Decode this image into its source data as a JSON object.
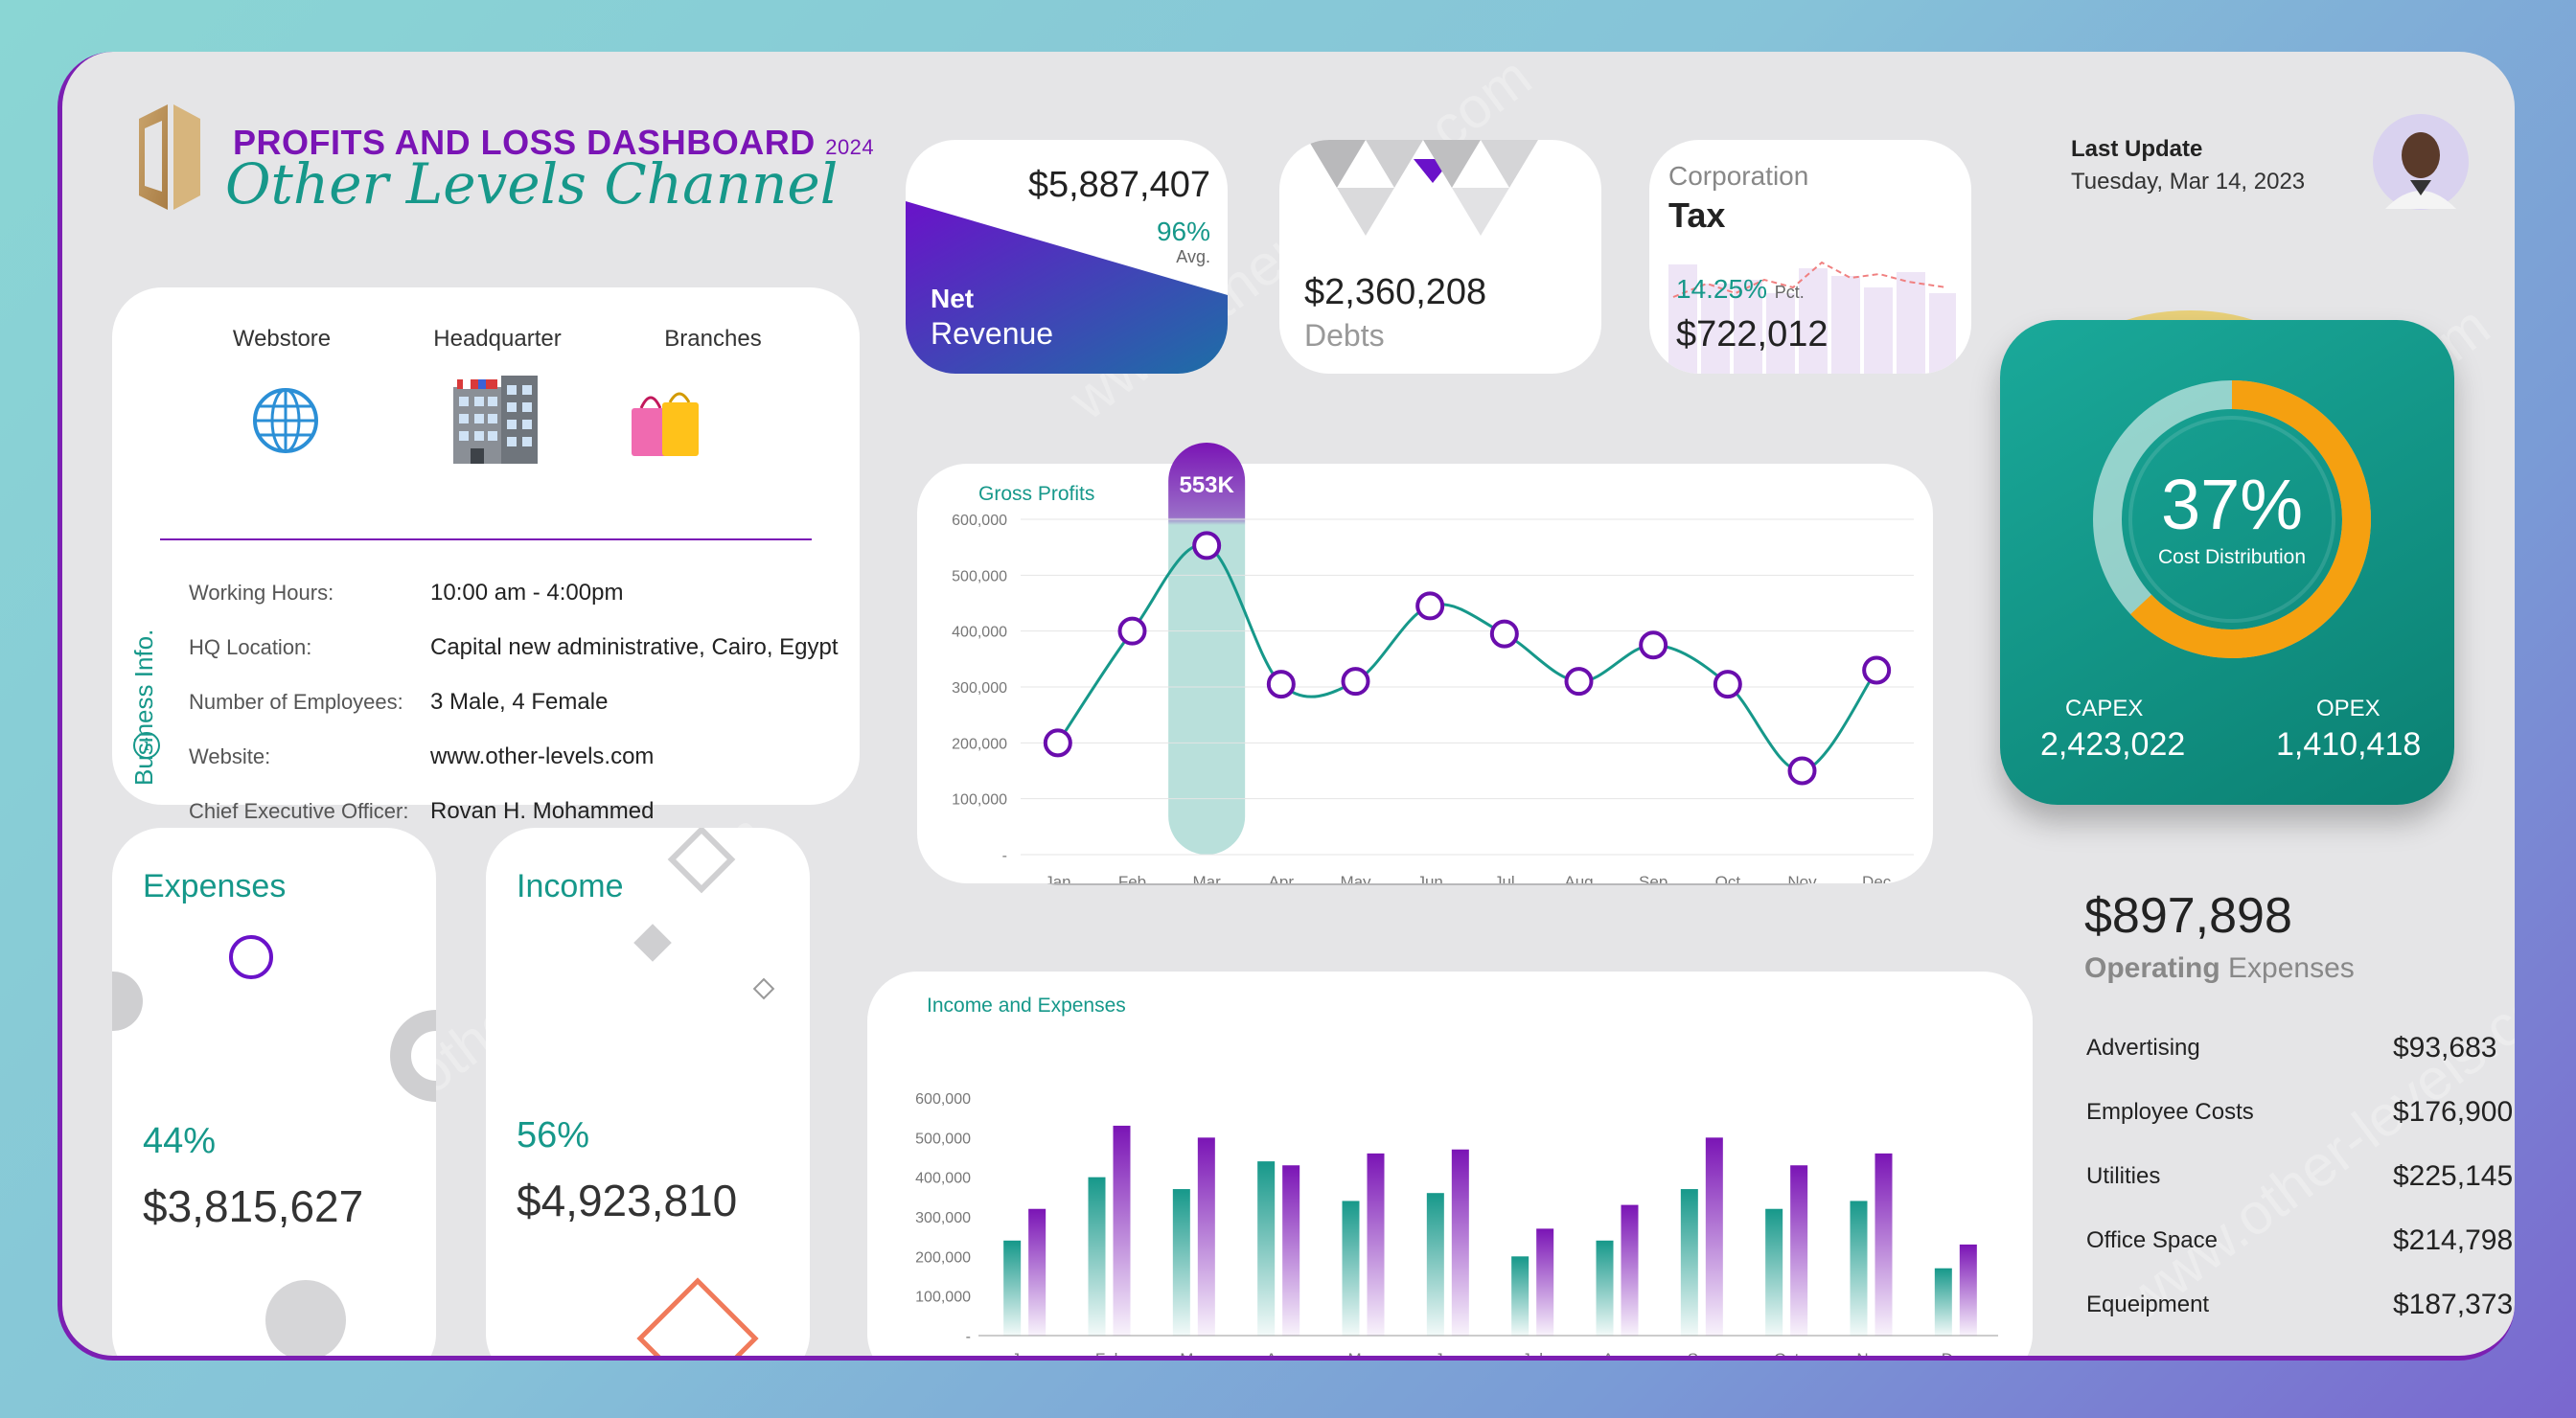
{
  "header": {
    "title": "PROFITS AND LOSS DASHBOARD",
    "year": "2024",
    "subtitle": "Other Levels Channel"
  },
  "last_update": {
    "label": "Last Update",
    "date": "Tuesday, Mar 14, 2023"
  },
  "business": {
    "section_label": "Business Info.",
    "info_icon": "i",
    "icons": [
      {
        "label": "Webstore",
        "icon": "globe-icon"
      },
      {
        "label": "Headquarter",
        "icon": "building-icon"
      },
      {
        "label": "Branches",
        "icon": "shopping-bags-icon"
      }
    ],
    "rows": [
      {
        "label": "Working Hours:",
        "value": "10:00 am - 4:00pm"
      },
      {
        "label": "HQ Location:",
        "value": "Capital new administrative, Cairo, Egypt"
      },
      {
        "label": "Number of Employees:",
        "value": "3 Male, 4 Female"
      },
      {
        "label": "Website:",
        "value": "www.other-levels.com"
      },
      {
        "label": "Chief Executive Officer:",
        "value": "Rovan H. Mohammed"
      }
    ]
  },
  "kpis": {
    "net_revenue": {
      "value": "$5,887,407",
      "pct": "96%",
      "pct_label": "Avg.",
      "label1": "Net",
      "label2": "Revenue"
    },
    "debts": {
      "value": "$2,360,208",
      "label": "Debts"
    },
    "tax": {
      "label1": "Corporation",
      "label2": "Tax",
      "pct": "14.25%",
      "pct_label": "Pct.",
      "value": "$722,012"
    }
  },
  "cost_distribution": {
    "percent": 37,
    "percent_label": "37%",
    "label": "Cost Distribution",
    "capex_label": "CAPEX",
    "capex_value": "2,423,022",
    "opex_label": "OPEX",
    "opex_value": "1,410,418"
  },
  "expenses_card": {
    "title": "Expenses",
    "pct": "44%",
    "value": "$3,815,627"
  },
  "income_card": {
    "title": "Income",
    "pct": "56%",
    "value": "$4,923,810"
  },
  "operating": {
    "value": "$897,898",
    "label_bold": "Operating",
    "label_rest": "Expenses",
    "items": [
      {
        "label": "Advertising",
        "value": "$93,683"
      },
      {
        "label": "Employee Costs",
        "value": "$176,900"
      },
      {
        "label": "Utilities",
        "value": "$225,145"
      },
      {
        "label": "Office Space",
        "value": "$214,798"
      },
      {
        "label": "Equeipment",
        "value": "$187,373"
      }
    ]
  },
  "colors": {
    "teal": "#16988a",
    "purple": "#6a0dad",
    "orange": "#f5a010",
    "green_card": "#0f8f80"
  },
  "watermark": "www.other-levels.com",
  "chart_data": [
    {
      "type": "line",
      "title": "Gross Profits",
      "categories": [
        "Jan",
        "Feb",
        "Mar",
        "Apr",
        "May",
        "Jun",
        "Jul",
        "Aug",
        "Sep",
        "Oct",
        "Nov",
        "Dec"
      ],
      "values": [
        200000,
        400000,
        553000,
        305000,
        310000,
        445000,
        395000,
        310000,
        375000,
        305000,
        150000,
        330000
      ],
      "highlight": {
        "category": "Mar",
        "label": "553K"
      },
      "yticks": [
        "-",
        "100,000",
        "200,000",
        "300,000",
        "400,000",
        "500,000",
        "600,000"
      ],
      "ylim": [
        0,
        600000
      ],
      "grid": true
    },
    {
      "type": "bar",
      "title": "Income and Expenses",
      "categories": [
        "Jan",
        "Feb",
        "Mar",
        "Apr",
        "May",
        "Jun",
        "Jul",
        "Aug",
        "Sep",
        "Oct",
        "Nov",
        "Dec"
      ],
      "series": [
        {
          "values": [
            240000,
            400000,
            370000,
            440000,
            340000,
            360000,
            200000,
            240000,
            370000,
            320000,
            340000,
            170000
          ],
          "color": "#16988a"
        },
        {
          "values": [
            320000,
            530000,
            500000,
            430000,
            460000,
            470000,
            270000,
            330000,
            500000,
            430000,
            460000,
            230000
          ],
          "color": "#7a14b5"
        }
      ],
      "yticks": [
        "-",
        "100,000",
        "200,000",
        "300,000",
        "400,000",
        "500,000",
        "600,000"
      ],
      "ylim": [
        0,
        600000
      ],
      "grid": false
    }
  ]
}
